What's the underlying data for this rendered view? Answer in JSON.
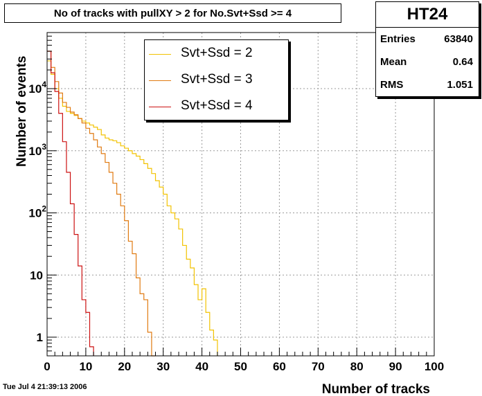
{
  "chart_data": {
    "type": "histogram",
    "title": "No of tracks with pullXY > 2 for No.Svt+Ssd >= 4",
    "xlabel": "Number of tracks",
    "ylabel": "Number of events",
    "xlim": [
      0,
      100
    ],
    "ylim": [
      0.5,
      80000
    ],
    "yscale": "log",
    "grid": true,
    "legend_position": "top-center",
    "x_ticks": [
      0,
      10,
      20,
      30,
      40,
      50,
      60,
      70,
      80,
      90,
      100
    ],
    "y_ticks": [
      {
        "value": 1,
        "label": "1",
        "sup": ""
      },
      {
        "value": 10,
        "label": "10",
        "sup": ""
      },
      {
        "value": 100,
        "label": "10",
        "sup": "2"
      },
      {
        "value": 1000,
        "label": "10",
        "sup": "3"
      },
      {
        "value": 10000,
        "label": "10",
        "sup": "4"
      }
    ],
    "bin_width": 1,
    "series": [
      {
        "name": "Svt+Ssd = 2",
        "color": "#f2c200",
        "values": [
          28000,
          17000,
          10000,
          7000,
          5200,
          4300,
          4000,
          3700,
          3300,
          3000,
          2800,
          2600,
          2400,
          2200,
          1800,
          1600,
          1500,
          1450,
          1350,
          1200,
          1100,
          1000,
          900,
          820,
          720,
          620,
          520,
          430,
          330,
          260,
          200,
          130,
          100,
          80,
          55,
          30,
          18,
          13,
          7,
          4,
          6,
          2.5,
          1.3,
          0.9
        ]
      },
      {
        "name": "Svt+Ssd = 3",
        "color": "#e07a10",
        "values": [
          40000,
          22000,
          13000,
          8500,
          6000,
          5000,
          4200,
          3800,
          3300,
          2800,
          2300,
          1900,
          1500,
          1150,
          900,
          650,
          450,
          300,
          200,
          130,
          75,
          35,
          22,
          9,
          5,
          4,
          1.2,
          0.4
        ]
      },
      {
        "name": "Svt+Ssd = 4",
        "color": "#cc1111",
        "values": [
          40000,
          18000,
          9000,
          4000,
          1400,
          450,
          140,
          45,
          14,
          4,
          2.5,
          0.7
        ]
      }
    ]
  },
  "stats": {
    "name": "HT24",
    "rows": [
      {
        "label": "Entries",
        "value": "63840"
      },
      {
        "label": "Mean",
        "value": "0.64"
      },
      {
        "label": "RMS",
        "value": "1.051"
      }
    ]
  },
  "timestamp": "Tue Jul  4 21:39:13 2006"
}
